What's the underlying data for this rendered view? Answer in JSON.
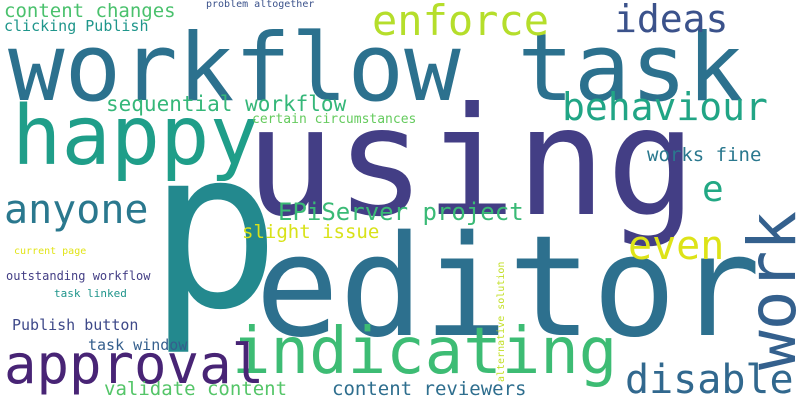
{
  "words": [
    {
      "text": "p",
      "color": "#23898e"
    },
    {
      "text": "using",
      "color": "#433e85"
    },
    {
      "text": "workflow task",
      "color": "#2c718e"
    },
    {
      "text": "editor",
      "color": "#2d708e"
    },
    {
      "text": "happy",
      "color": "#1f9e89"
    },
    {
      "text": "indicating",
      "color": "#3dbc74"
    },
    {
      "text": "work",
      "color": "#34608d"
    },
    {
      "text": "approval",
      "color": "#482475"
    },
    {
      "text": "enforce",
      "color": "#b5de2b"
    },
    {
      "text": "behaviour",
      "color": "#21a585"
    },
    {
      "text": "ideas",
      "color": "#3b528b"
    },
    {
      "text": "anyone",
      "color": "#2a788e"
    },
    {
      "text": "disable",
      "color": "#31688e"
    },
    {
      "text": "even",
      "color": "#dde318"
    },
    {
      "text": "e",
      "color": "#22a884"
    },
    {
      "text": "sequential workflow",
      "color": "#35b779"
    },
    {
      "text": "EPiServer project",
      "color": "#3aba76"
    },
    {
      "text": "content changes",
      "color": "#4ac16d"
    },
    {
      "text": "works fine",
      "color": "#2a788e"
    },
    {
      "text": "slight issue",
      "color": "#d8e219"
    },
    {
      "text": "validate content",
      "color": "#54c568"
    },
    {
      "text": "content reviewers",
      "color": "#2e6e8e"
    },
    {
      "text": "clicking Publish",
      "color": "#1f968b"
    },
    {
      "text": "Publish button",
      "color": "#3e4989"
    },
    {
      "text": "task window",
      "color": "#355f8d"
    },
    {
      "text": "certain circumstances",
      "color": "#65cb5e"
    },
    {
      "text": "outstanding workflow",
      "color": "#433e85"
    },
    {
      "text": "task linked",
      "color": "#1f958b"
    },
    {
      "text": "current page",
      "color": "#e2e418"
    },
    {
      "text": "problem altogether",
      "color": "#3b528b"
    },
    {
      "text": "alternative solution",
      "color": "#c2df23"
    }
  ]
}
